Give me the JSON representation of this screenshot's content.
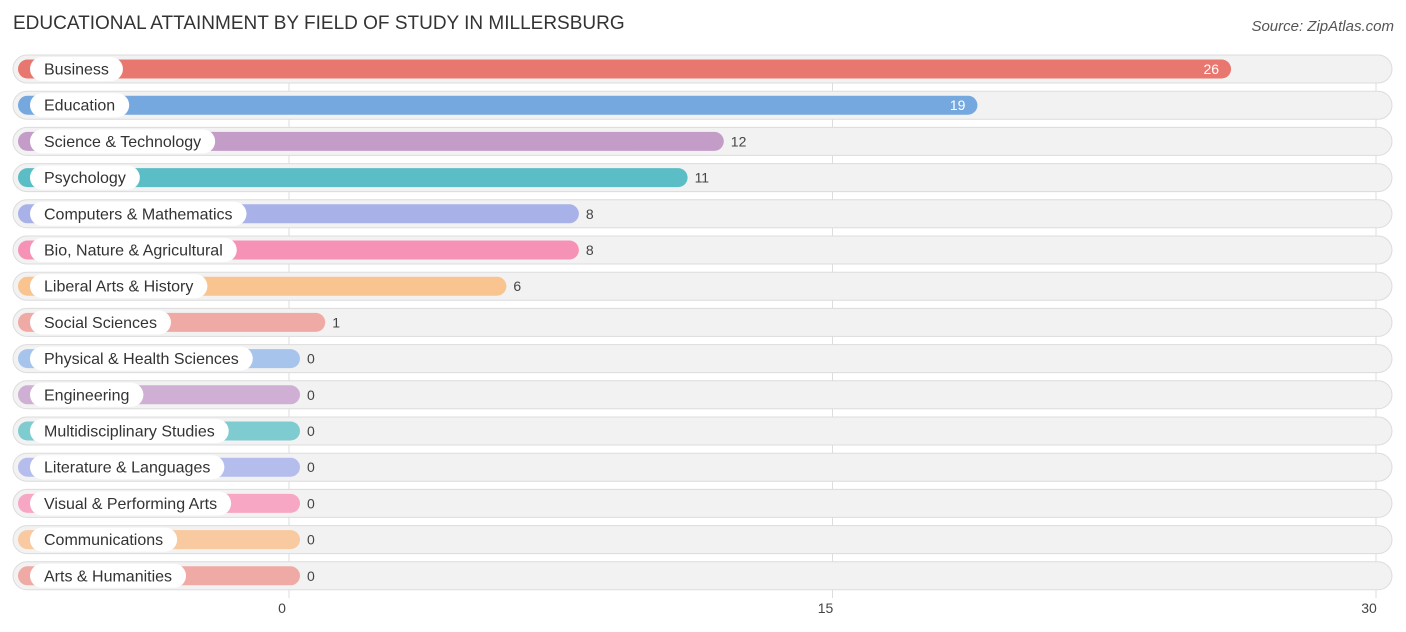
{
  "title": "EDUCATIONAL ATTAINMENT BY FIELD OF STUDY IN MILLERSBURG",
  "source": "Source: ZipAtlas.com",
  "chart_data": {
    "type": "bar",
    "orientation": "horizontal",
    "title": "EDUCATIONAL ATTAINMENT BY FIELD OF STUDY IN MILLERSBURG",
    "xlabel": "",
    "ylabel": "",
    "xlim": [
      0,
      30
    ],
    "xticks": [
      0,
      15,
      30
    ],
    "grid": true,
    "categories": [
      "Business",
      "Education",
      "Science & Technology",
      "Psychology",
      "Computers & Mathematics",
      "Bio, Nature & Agricultural",
      "Liberal Arts & History",
      "Social Sciences",
      "Physical & Health Sciences",
      "Engineering",
      "Multidisciplinary Studies",
      "Literature & Languages",
      "Visual & Performing Arts",
      "Communications",
      "Arts & Humanities"
    ],
    "values": [
      26,
      19,
      12,
      11,
      8,
      8,
      6,
      1,
      0,
      0,
      0,
      0,
      0,
      0,
      0
    ],
    "colors": [
      "#e8776f",
      "#76a8e0",
      "#c39cc8",
      "#5bbdc5",
      "#a8b1e8",
      "#f592b5",
      "#f9c490",
      "#f0aaa6",
      "#a7c5ec",
      "#cfafd3",
      "#7ecbd0",
      "#b5bdec",
      "#f7a6c4",
      "#f9c9a0",
      "#f0aaa6"
    ]
  }
}
